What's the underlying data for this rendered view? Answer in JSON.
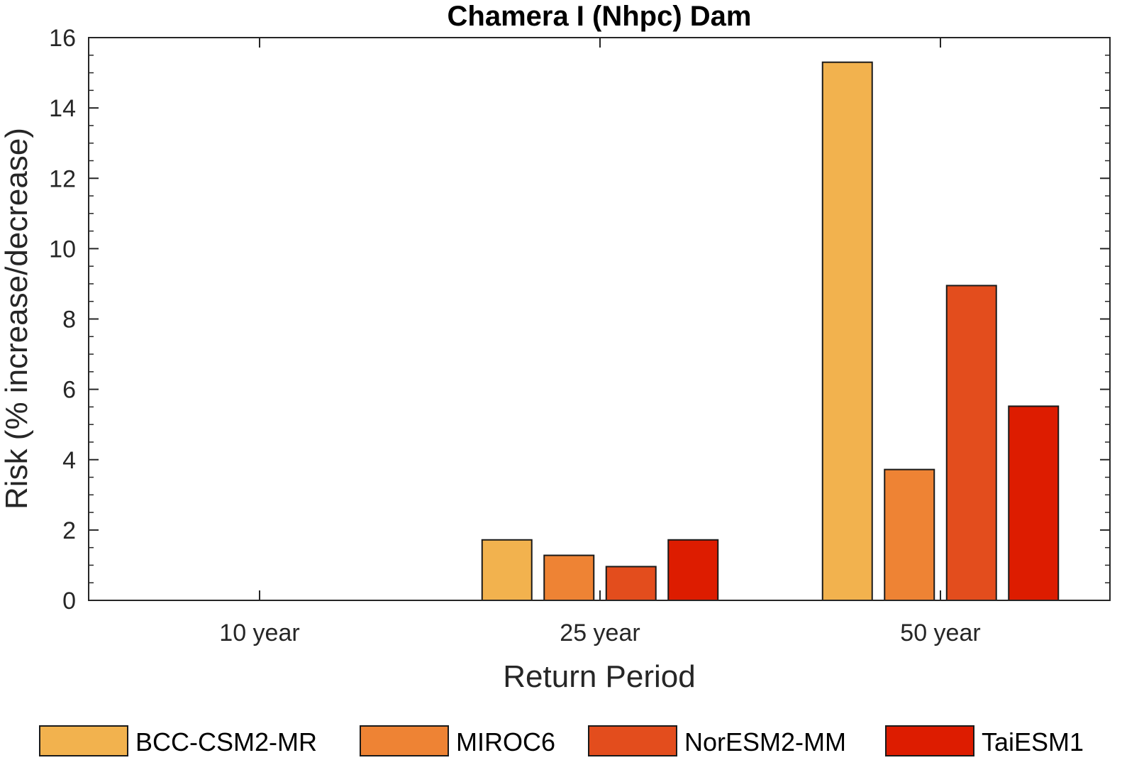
{
  "chart_data": {
    "type": "bar",
    "title": "Chamera I (Nhpc) Dam",
    "xlabel": "Return Period",
    "ylabel": "Risk (% increase/decrease)",
    "categories": [
      "10 year",
      "25 year",
      "50 year"
    ],
    "ylim": [
      0,
      16
    ],
    "yticks": [
      0,
      2,
      4,
      6,
      8,
      10,
      12,
      14,
      16
    ],
    "grid": false,
    "legend_position": "bottom",
    "series": [
      {
        "name": "BCC-CSM2-MR",
        "color": "#F2B24E",
        "values": [
          0,
          1.72,
          15.3
        ]
      },
      {
        "name": "MIROC6",
        "color": "#EE8334",
        "values": [
          0,
          1.28,
          3.72
        ]
      },
      {
        "name": "NorESM2-MM",
        "color": "#E34D1D",
        "values": [
          0,
          0.96,
          8.95
        ]
      },
      {
        "name": "TaiESM1",
        "color": "#DD1C00",
        "values": [
          0,
          1.72,
          5.52
        ]
      }
    ]
  }
}
